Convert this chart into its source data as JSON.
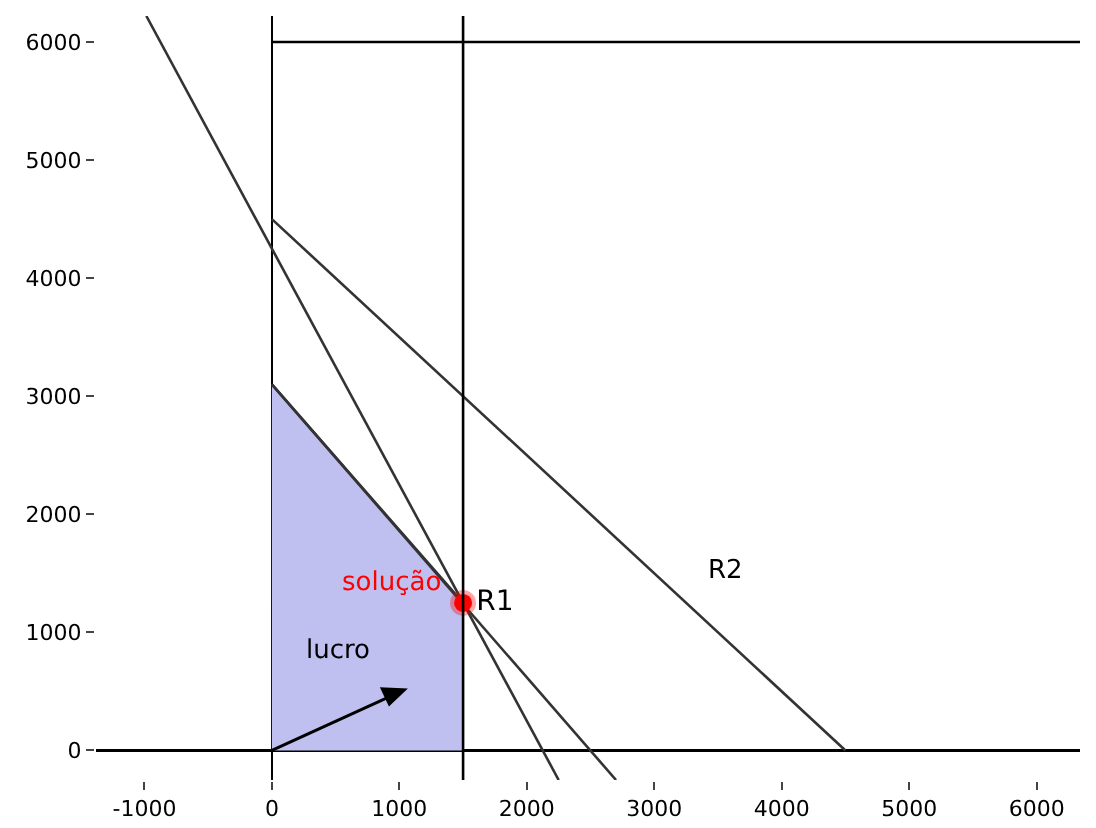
{
  "chart_data": {
    "type": "line",
    "xlim": [
      -1380,
      6340
    ],
    "ylim": [
      -250,
      6220
    ],
    "xticks": [
      -1000,
      0,
      1000,
      2000,
      3000,
      4000,
      5000,
      6000
    ],
    "yticks": [
      0,
      1000,
      2000,
      3000,
      4000,
      5000,
      6000
    ],
    "grid": false,
    "series": [
      {
        "type": "area",
        "color": "#bfbff0",
        "x": [
          0,
          1500
        ],
        "values": [
          3100,
          1250
        ]
      },
      {
        "type": "line",
        "color": "#333333",
        "x": [
          -985,
          2250
        ],
        "values": [
          6220,
          -250
        ]
      },
      {
        "type": "line",
        "color": "#333333",
        "x": [
          0,
          2700
        ],
        "values": [
          3100,
          -250
        ]
      },
      {
        "type": "line",
        "color": "#333333",
        "x": [
          0,
          4500
        ],
        "values": [
          4500,
          0
        ]
      },
      {
        "color": "#000000",
        "x": [
          0,
          6340
        ],
        "values": [
          6000,
          6000
        ]
      },
      {
        "type": "scatter",
        "name": "R1",
        "color": "#ff0000",
        "marker": "circle",
        "x": [
          1500
        ],
        "values": [
          1250
        ]
      }
    ],
    "ref_lines": [
      {
        "axis": "x",
        "value": 1500,
        "color": "#000000"
      }
    ],
    "annotations": [
      "solução",
      "R2",
      "lucro"
    ]
  }
}
